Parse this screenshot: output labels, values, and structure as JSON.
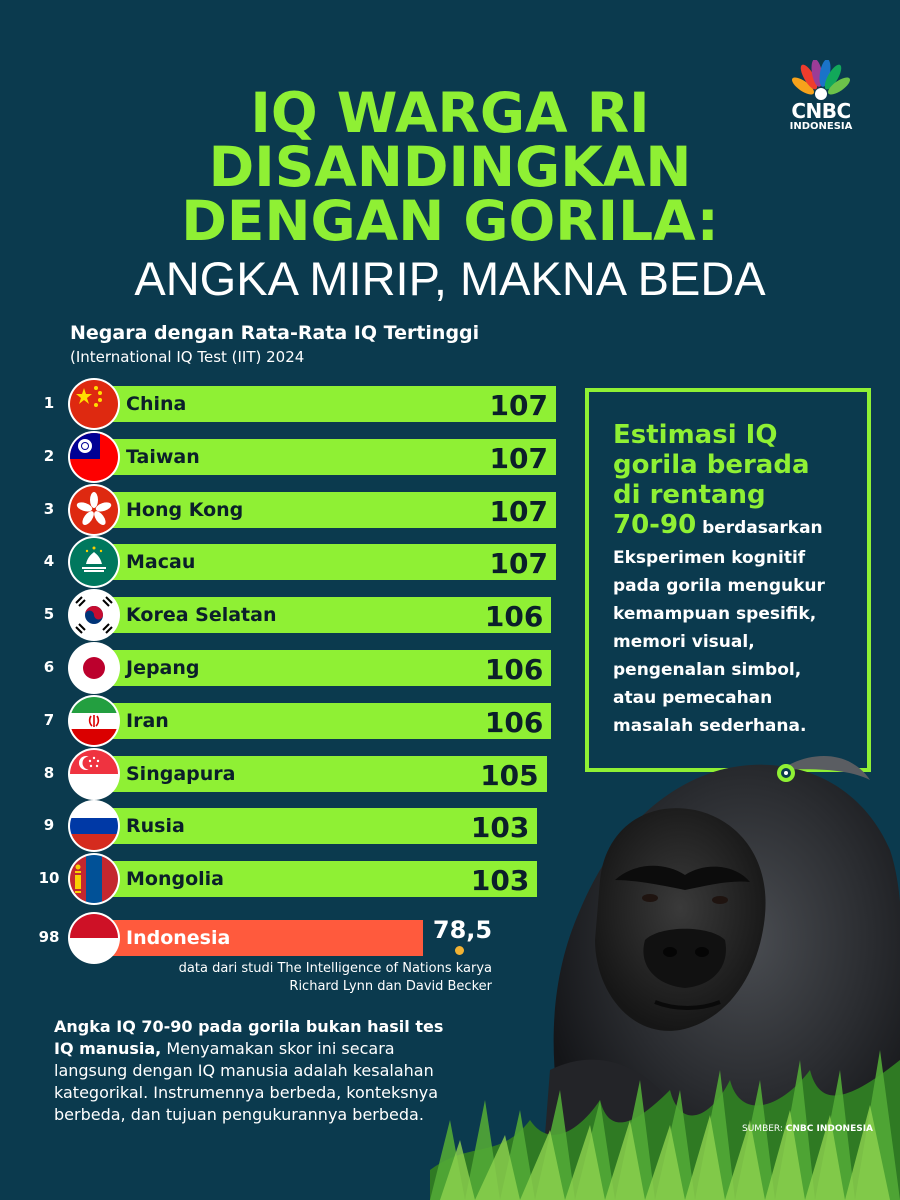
{
  "header": {
    "title_lines": [
      "IQ WARGA RI",
      "DISANDINGKAN",
      "DENGAN GORILA:"
    ],
    "subtitle": "ANGKA MIRIP, MAKNA BEDA",
    "logo_text": "CNBC",
    "logo_sub": "INDONESIA"
  },
  "chart_data": {
    "type": "bar",
    "orientation": "horizontal",
    "title": "Negara dengan Rata-Rata IQ Tertinggi",
    "subtitle": "(International IQ Test (IIT) 2024",
    "ranks": [
      "1",
      "2",
      "3",
      "4",
      "5",
      "6",
      "7",
      "8",
      "9",
      "10",
      "98"
    ],
    "categories": [
      "China",
      "Taiwan",
      "Hong Kong",
      "Macau",
      "Korea Selatan",
      "Jepang",
      "Iran",
      "Singapura",
      "Rusia",
      "Mongolia",
      "Indonesia"
    ],
    "values": [
      107,
      107,
      107,
      107,
      106,
      106,
      106,
      105,
      103,
      103,
      78.5
    ],
    "value_labels": [
      "107",
      "107",
      "107",
      "107",
      "106",
      "106",
      "106",
      "105",
      "103",
      "103",
      "78,5"
    ],
    "flags": [
      "flag-china",
      "flag-taiwan",
      "flag-hong-kong",
      "flag-macau",
      "flag-south-korea",
      "flag-japan",
      "flag-iran",
      "flag-singapore",
      "flag-russia",
      "flag-mongolia",
      "flag-indonesia"
    ],
    "highlight_index": 10,
    "bar_color": "#8ff034",
    "highlight_color": "#ff5a3d",
    "note": [
      "data dari studi The Intelligence of Nations karya",
      "Richard Lynn dan David Becker"
    ]
  },
  "info_box": {
    "headline_lines": [
      "Estimasi IQ",
      "gorila berada",
      "di rentang"
    ],
    "range": "70-90",
    "range_tail": " berdasarkan",
    "body_lines": [
      "Eksperimen kognitif",
      "pada gorila mengukur",
      "kemampuan spesifik,",
      "memori visual,",
      "pengenalan simbol,",
      "atau pemecahan",
      "masalah sederhana."
    ]
  },
  "bottom": {
    "lead": "Angka IQ 70-90 pada gorila bukan hasil tes IQ manusia,",
    "body": " Menyamakan skor ini secara langsung dengan IQ manusia adalah kesalahan kategorikal. Instrumennya berbeda, konteksnya berbeda, dan tujuan pengukurannya berbeda."
  },
  "credit": {
    "label": "SUMBER: ",
    "source": "CNBC INDONESIA"
  },
  "colors": {
    "background": "#0b3a4e",
    "accent": "#8ff034",
    "highlight": "#ff5a3d"
  }
}
